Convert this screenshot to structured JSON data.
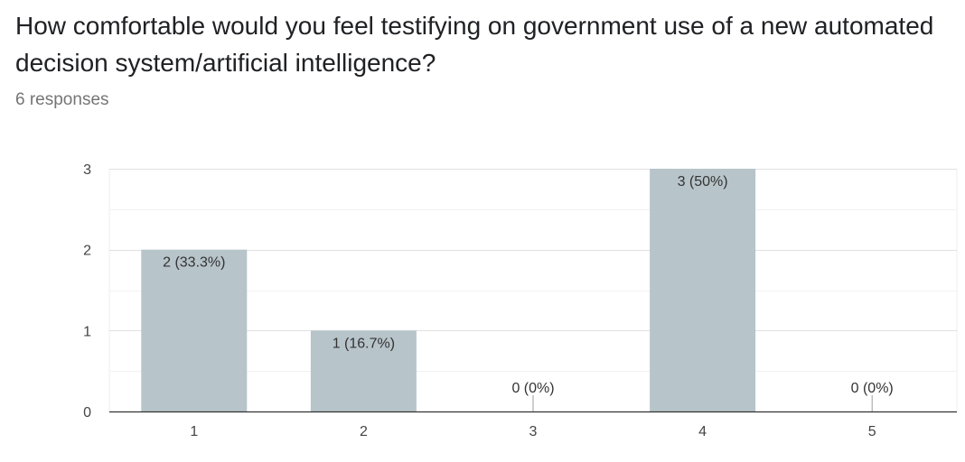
{
  "question": {
    "title": "How comfortable would you feel testifying on government use of a new automated decision system/artificial intelligence?",
    "response_count": "6 responses"
  },
  "colors": {
    "bar": "#b7c4ca",
    "grid": "#ececec",
    "axis": "#333333",
    "stem": "#9e9e9e"
  },
  "chart_data": {
    "type": "bar",
    "categories": [
      "1",
      "2",
      "3",
      "4",
      "5"
    ],
    "values": [
      2,
      1,
      0,
      3,
      0
    ],
    "data_labels": [
      "2 (33.3%)",
      "1 (16.7%)",
      "0 (0%)",
      "3 (50%)",
      "0 (0%)"
    ],
    "y_ticks": [
      "0",
      "1",
      "2",
      "3"
    ],
    "ylim": [
      0,
      3
    ],
    "grid": true,
    "xlabel": "",
    "ylabel": ""
  }
}
